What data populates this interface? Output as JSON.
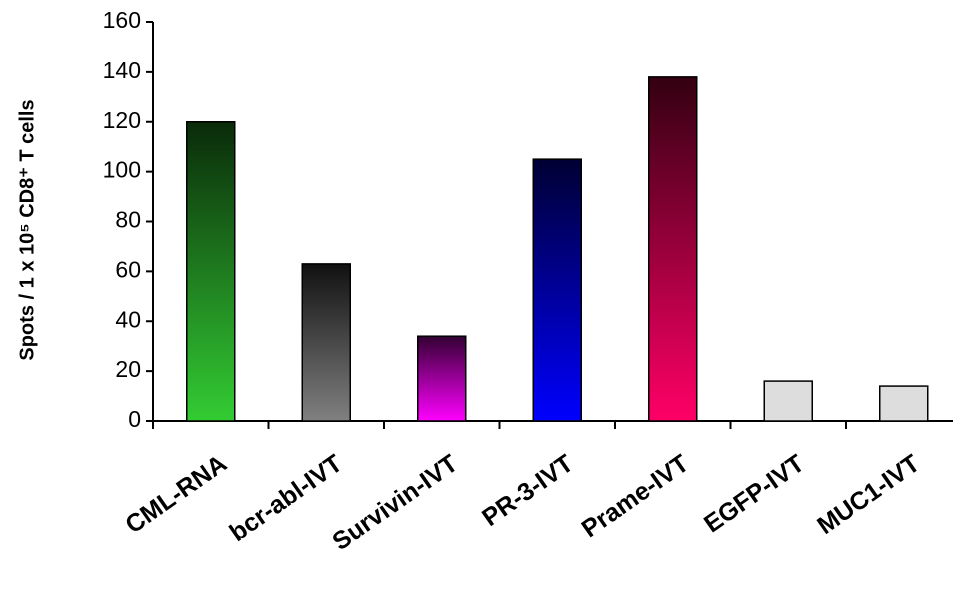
{
  "chart_data": {
    "type": "bar",
    "y_label": "Spots / 1 x 10⁵ CD8⁺ T cells",
    "categories": [
      "CML-RNA",
      "bcr-abl-IVT",
      "Survivin-IVT",
      "PR-3-IVT",
      "Prame-IVT",
      "EGFP-IVT",
      "MUC1-IVT"
    ],
    "values": [
      120,
      63,
      34,
      105,
      138,
      16,
      14
    ],
    "colors": [
      "#33cc33",
      "#808080",
      "#ff00ff",
      "#0000ff",
      "#ff0066",
      "#dddddd",
      "#dddddd"
    ],
    "gradient_tops": [
      "#0a2a0a",
      "#111111",
      "#330033",
      "#000033",
      "#330011",
      "#dddddd",
      "#dddddd"
    ],
    "ylim": [
      0,
      160
    ],
    "yticks": [
      0,
      20,
      40,
      60,
      80,
      100,
      120,
      140,
      160
    ],
    "grid": false
  }
}
